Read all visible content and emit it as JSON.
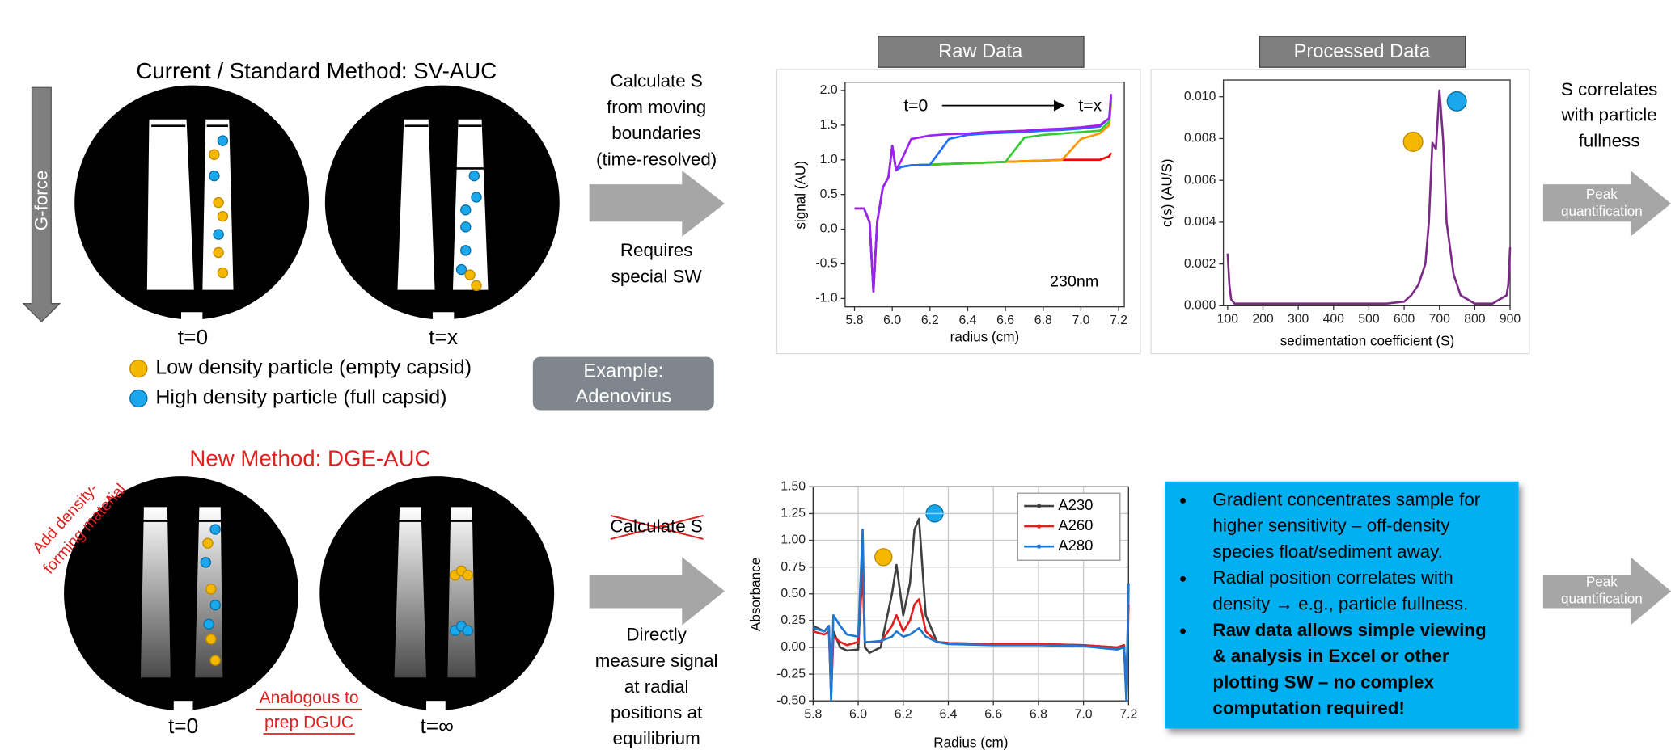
{
  "top": {
    "title": "Current / Standard Method: SV-AUC",
    "g_force": "G-force",
    "cell_labels": [
      "t=0",
      "t=x"
    ],
    "legend": [
      "Low density particle (empty capsid)",
      "High density particle (full capsid)"
    ],
    "arrow_above": [
      "Calculate S",
      "from moving",
      "boundaries",
      "(time-resolved)"
    ],
    "arrow_below": [
      "Requires",
      "special SW"
    ],
    "example": [
      "Example:",
      "Adenovirus"
    ],
    "conclusion": [
      "S correlates",
      "with particle",
      "fullness"
    ],
    "peak": [
      "Peak",
      "quantification"
    ]
  },
  "bottom": {
    "title": "New Method: DGE-AUC",
    "annotation": [
      "Add density-",
      "forming material"
    ],
    "cell_labels": [
      "t=0",
      "t=∞"
    ],
    "analogy": [
      "Analogous to",
      "prep DGUC"
    ],
    "struck": "Calculate S",
    "arrow_below": [
      "Directly",
      "measure signal",
      "at radial",
      "positions at",
      "equilibrium"
    ],
    "bullets": [
      {
        "lines": [
          "Gradient concentrates sample for",
          "higher sensitivity – off-density",
          "species float/sediment away."
        ],
        "bold": false
      },
      {
        "lines": [
          "Radial position correlates with",
          "density → e.g., particle fullness."
        ],
        "bold": false
      },
      {
        "lines": [
          "Raw data allows simple viewing",
          "& analysis in Excel or other",
          "plotting SW – no complex",
          "computation required!"
        ],
        "bold": true
      }
    ],
    "peak": [
      "Peak",
      "quantification"
    ]
  },
  "chart_data": [
    {
      "type": "line",
      "header": "Raw Data",
      "xlabel": "radius (cm)",
      "ylabel": "signal (AU)",
      "annotations": [
        "t=0",
        "t=x",
        "230nm"
      ],
      "x": [
        5.8,
        5.85,
        5.88,
        5.9,
        5.92,
        5.95,
        5.98,
        6.0,
        6.02,
        6.05,
        6.1,
        6.2,
        6.3,
        6.4,
        6.5,
        6.6,
        6.7,
        6.8,
        6.9,
        7.0,
        7.1,
        7.15,
        7.16
      ],
      "series": [
        {
          "color": "#f00000",
          "values": [
            0.3,
            0.3,
            0.1,
            -0.9,
            0.1,
            0.6,
            0.75,
            1.2,
            0.85,
            0.9,
            0.92,
            0.93,
            0.94,
            0.95,
            0.96,
            0.97,
            0.98,
            0.99,
            1.0,
            1.0,
            1.0,
            1.05,
            1.1
          ]
        },
        {
          "color": "#ff9900",
          "values": [
            0.3,
            0.3,
            0.1,
            -0.9,
            0.1,
            0.6,
            0.75,
            1.2,
            0.85,
            0.9,
            0.92,
            0.93,
            0.94,
            0.95,
            0.96,
            0.97,
            0.98,
            0.99,
            1.0,
            1.3,
            1.38,
            1.5,
            1.8
          ]
        },
        {
          "color": "#33cc33",
          "values": [
            0.3,
            0.3,
            0.1,
            -0.9,
            0.1,
            0.6,
            0.75,
            1.2,
            0.85,
            0.9,
            0.92,
            0.93,
            0.94,
            0.95,
            0.96,
            0.97,
            1.32,
            1.36,
            1.38,
            1.4,
            1.42,
            1.55,
            1.85
          ]
        },
        {
          "color": "#1e6fff",
          "values": [
            0.3,
            0.3,
            0.1,
            -0.9,
            0.1,
            0.6,
            0.75,
            1.2,
            0.85,
            0.9,
            0.92,
            0.93,
            1.3,
            1.36,
            1.38,
            1.39,
            1.4,
            1.42,
            1.43,
            1.45,
            1.48,
            1.6,
            1.9
          ]
        },
        {
          "color": "#a020f0",
          "values": [
            0.3,
            0.3,
            0.1,
            -0.9,
            0.1,
            0.6,
            0.75,
            1.2,
            0.85,
            1.0,
            1.3,
            1.35,
            1.37,
            1.38,
            1.4,
            1.41,
            1.42,
            1.44,
            1.45,
            1.47,
            1.5,
            1.6,
            1.95
          ]
        }
      ],
      "xlim": [
        5.75,
        7.23
      ],
      "ylim": [
        -1.12,
        2.12
      ],
      "xticks": [
        5.8,
        {
          "value": 6,
          "label": "6.0"
        },
        6.2,
        6.4,
        6.6,
        6.8,
        {
          "value": 7,
          "label": "7.0"
        },
        7.2
      ],
      "yticks": [
        {
          "value": 2,
          "label": "2.0"
        },
        1.5,
        {
          "value": 1,
          "label": "1.0"
        },
        0.5,
        {
          "value": 0,
          "label": "0.0"
        },
        -0.5,
        {
          "value": -1,
          "label": "-1.0"
        }
      ],
      "grid": false
    },
    {
      "type": "line",
      "header": "Processed Data",
      "xlabel": "sedimentation coefficient (S)",
      "ylabel": "c(s) (AU/S)",
      "x": [
        100,
        105,
        110,
        120,
        150,
        200,
        300,
        400,
        500,
        550,
        600,
        620,
        640,
        660,
        670,
        680,
        690,
        700,
        710,
        720,
        740,
        760,
        800,
        850,
        890,
        895,
        898,
        900
      ],
      "series": [
        {
          "color": "#7b2a86",
          "values": [
            0.0025,
            0.001,
            0.0003,
            0.0001,
            0.0001,
            0.0001,
            0.0001,
            0.0001,
            0.0001,
            0.0001,
            0.0002,
            0.0005,
            0.001,
            0.002,
            0.004,
            0.0078,
            0.0075,
            0.0103,
            0.008,
            0.004,
            0.0015,
            0.0005,
            0.0001,
            0.0001,
            0.0005,
            0.001,
            0.002,
            0.0028
          ]
        }
      ],
      "xlim": [
        88,
        900
      ],
      "ylim": [
        0,
        0.0108
      ],
      "xticks": [
        100,
        200,
        300,
        400,
        500,
        600,
        700,
        800,
        900
      ],
      "yticks": [
        {
          "value": 0,
          "label": "0.000"
        },
        {
          "value": 0.002,
          "label": "0.002"
        },
        {
          "value": 0.004,
          "label": "0.004"
        },
        {
          "value": 0.006,
          "label": "0.006"
        },
        {
          "value": 0.008,
          "label": "0.008"
        },
        {
          "value": 0.01,
          "label": "0.010"
        }
      ],
      "grid": false
    },
    {
      "type": "line",
      "xlabel": "Radius (cm)",
      "ylabel": "Absorbance",
      "legend": "upper right",
      "x": [
        5.8,
        5.85,
        5.87,
        5.88,
        5.89,
        5.92,
        5.95,
        6.0,
        6.02,
        6.03,
        6.05,
        6.1,
        6.15,
        6.17,
        6.2,
        6.23,
        6.25,
        6.27,
        6.3,
        6.35,
        6.4,
        6.6,
        6.8,
        7.0,
        7.15,
        7.18,
        7.19,
        7.2
      ],
      "series": [
        {
          "name": "A230",
          "color": "#404040",
          "values": [
            0.2,
            0.15,
            0.2,
            -0.45,
            0.15,
            0.0,
            -0.03,
            -0.02,
            0.9,
            0.0,
            -0.05,
            0.0,
            0.5,
            0.77,
            0.3,
            0.6,
            1.1,
            1.2,
            0.3,
            0.05,
            0.04,
            0.03,
            0.03,
            0.02,
            0.0,
            0.02,
            -0.45,
            0.55
          ]
        },
        {
          "name": "A260",
          "color": "#e02020",
          "values": [
            0.15,
            0.12,
            0.15,
            -0.45,
            0.1,
            0.05,
            0.02,
            0.05,
            0.7,
            0.05,
            0.05,
            0.05,
            0.2,
            0.3,
            0.15,
            0.25,
            0.4,
            0.45,
            0.15,
            0.05,
            0.04,
            0.03,
            0.03,
            0.02,
            0.0,
            0.02,
            -0.45,
            0.4
          ]
        },
        {
          "name": "A280",
          "color": "#1f77d0",
          "values": [
            0.18,
            0.15,
            0.2,
            -0.5,
            0.3,
            0.2,
            0.12,
            0.1,
            1.1,
            0.05,
            0.05,
            0.06,
            0.1,
            0.15,
            0.1,
            0.12,
            0.15,
            0.18,
            0.1,
            0.05,
            0.03,
            0.02,
            0.02,
            0.01,
            -0.02,
            0.0,
            -0.5,
            0.6
          ]
        }
      ],
      "xlim": [
        5.8,
        7.2
      ],
      "ylim": [
        -0.5,
        1.5
      ],
      "xticks": [
        5.8,
        {
          "value": 6,
          "label": "6.0"
        },
        6.2,
        6.4,
        6.6,
        6.8,
        {
          "value": 7,
          "label": "7.0"
        },
        7.2
      ],
      "yticks": [
        {
          "value": 1.5,
          "label": "1.50"
        },
        1.25,
        {
          "value": 1,
          "label": "1.00"
        },
        0.75,
        {
          "value": 0.5,
          "label": "0.50"
        },
        0.25,
        {
          "value": 0,
          "label": "0.00"
        },
        -0.25,
        {
          "value": -0.5,
          "label": "-0.50"
        }
      ],
      "grid": true
    }
  ]
}
